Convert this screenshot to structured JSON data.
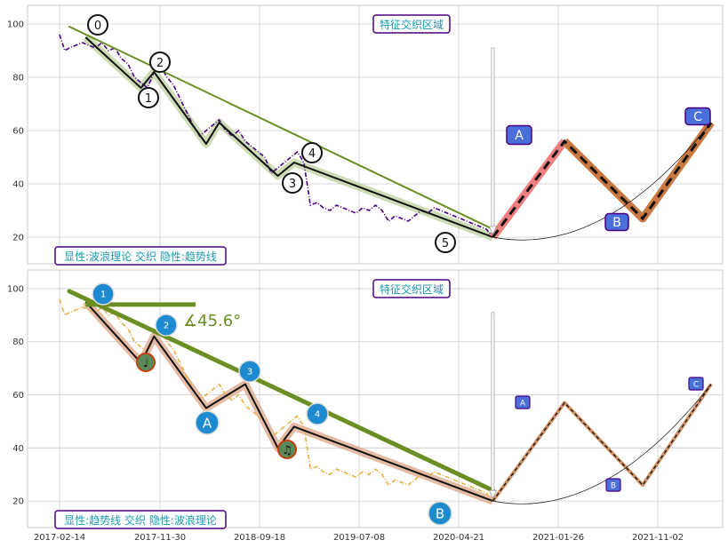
{
  "colors": {
    "grid": "#cccccc",
    "frame": "#cccccc",
    "price_top": "#4b0082",
    "price_bottom": "#e8b040",
    "trend": "#6b8e23",
    "wave_fill": "#b8cc99",
    "wave_fill_bottom": "#d9a080",
    "future_red": "#f08080",
    "future_brown": "#c87840",
    "label_box": "#4a6fd8",
    "label_border": "#4b0082",
    "title_text": "#1a9ab0",
    "badge_blue": "#1e8ad0",
    "badge_green": "#5a8a5a",
    "badge_border_red": "#c04010"
  },
  "chart_data": [
    {
      "type": "line",
      "panel": "top",
      "title": "特征交织区域",
      "legend": "显性:波浪理论 交织 隐性:趋势线",
      "legend_position": "bottom-left",
      "ylim": [
        10,
        107
      ],
      "yticks": [
        20,
        40,
        60,
        80,
        100
      ],
      "xlim": [
        0,
        1000
      ],
      "grid": true,
      "series": [
        {
          "role": "price",
          "style": "dash-dot",
          "x": [
            0,
            8,
            15,
            25,
            35,
            45,
            55,
            65,
            75,
            85,
            95,
            105,
            115,
            125,
            135,
            145,
            155,
            165,
            175,
            185,
            195,
            205,
            215,
            225,
            235,
            245,
            255,
            265,
            275,
            285,
            295,
            305,
            315,
            325,
            335,
            345,
            355,
            365,
            375,
            385,
            395,
            405,
            415,
            425,
            435,
            445,
            455,
            465,
            475,
            485,
            495,
            505,
            515,
            525,
            535,
            545,
            555,
            565,
            575,
            585,
            595,
            605,
            615,
            625,
            635,
            645,
            655,
            665
          ],
          "y": [
            96,
            90,
            91,
            92,
            93,
            92,
            91,
            93,
            90,
            91,
            87,
            85,
            80,
            78,
            76,
            82,
            84,
            80,
            77,
            72,
            67,
            62,
            58,
            60,
            62,
            64,
            60,
            58,
            60,
            56,
            54,
            52,
            50,
            44,
            46,
            48,
            50,
            52,
            48,
            32,
            33,
            31,
            30,
            32,
            31,
            30,
            29,
            31,
            30,
            32,
            30,
            26,
            28,
            27,
            26,
            28,
            30,
            29,
            31,
            30,
            29,
            28,
            27,
            26,
            25,
            24,
            23,
            20
          ]
        },
        {
          "role": "wave",
          "x": [
            40,
            125,
            145,
            225,
            245,
            335,
            360,
            665
          ],
          "y": [
            95,
            76,
            82,
            55,
            63,
            43,
            48,
            20
          ]
        },
        {
          "role": "trend",
          "x": [
            15,
            665
          ],
          "y": [
            99,
            23
          ]
        },
        {
          "role": "future",
          "x": [
            665,
            775,
            895,
            1000
          ],
          "y": [
            20,
            56,
            27,
            63
          ]
        }
      ],
      "point_labels": [
        "0",
        "1",
        "2",
        "3",
        "4",
        "5",
        "A",
        "B",
        "C"
      ]
    },
    {
      "type": "line",
      "panel": "bottom",
      "title": "特征交织区域",
      "legend": "显性:趋势线 交织 隐性:波浪理论",
      "legend_position": "bottom-left",
      "ylim": [
        10,
        107
      ],
      "yticks": [
        20,
        40,
        60,
        80,
        100
      ],
      "xlim": [
        0,
        1000
      ],
      "grid": true,
      "angle_label": "∡45.6°",
      "xticks": [
        "2017-02-14",
        "2017-11-30",
        "2018-09-18",
        "2019-07-08",
        "2020-04-21",
        "2021-01-26",
        "2021-11-02"
      ],
      "series": [
        {
          "role": "price",
          "style": "dash-dot",
          "x": [
            0,
            8,
            15,
            25,
            35,
            45,
            55,
            65,
            75,
            85,
            95,
            105,
            115,
            125,
            135,
            145,
            155,
            165,
            175,
            185,
            195,
            205,
            215,
            225,
            235,
            245,
            255,
            265,
            275,
            285,
            295,
            305,
            315,
            325,
            335,
            345,
            355,
            365,
            375,
            385,
            395,
            405,
            415,
            425,
            435,
            445,
            455,
            465,
            475,
            485,
            495,
            505,
            515,
            525,
            535,
            545,
            555,
            565,
            575,
            585,
            595,
            605,
            615,
            625,
            635,
            645,
            655,
            665
          ],
          "y": [
            96,
            90,
            91,
            92,
            93,
            92,
            91,
            93,
            90,
            91,
            87,
            85,
            80,
            78,
            76,
            82,
            84,
            80,
            77,
            72,
            67,
            62,
            58,
            60,
            62,
            64,
            60,
            58,
            60,
            56,
            54,
            52,
            50,
            44,
            46,
            48,
            50,
            52,
            48,
            32,
            33,
            31,
            30,
            32,
            31,
            30,
            29,
            31,
            30,
            32,
            30,
            26,
            28,
            27,
            26,
            28,
            30,
            29,
            31,
            30,
            29,
            28,
            27,
            26,
            25,
            24,
            23,
            20
          ]
        },
        {
          "role": "wave",
          "x": [
            40,
            125,
            145,
            225,
            285,
            335,
            360,
            665
          ],
          "y": [
            95,
            72,
            82,
            55,
            64,
            40,
            48,
            20
          ]
        },
        {
          "role": "trend",
          "x": [
            15,
            665
          ],
          "y": [
            99,
            24
          ]
        },
        {
          "role": "future",
          "x": [
            665,
            775,
            895,
            1000
          ],
          "y": [
            20,
            57,
            26,
            64
          ]
        }
      ],
      "point_labels": [
        "1",
        "2",
        "3",
        "4",
        "A",
        "B",
        "C",
        "♩",
        "♫"
      ]
    }
  ]
}
